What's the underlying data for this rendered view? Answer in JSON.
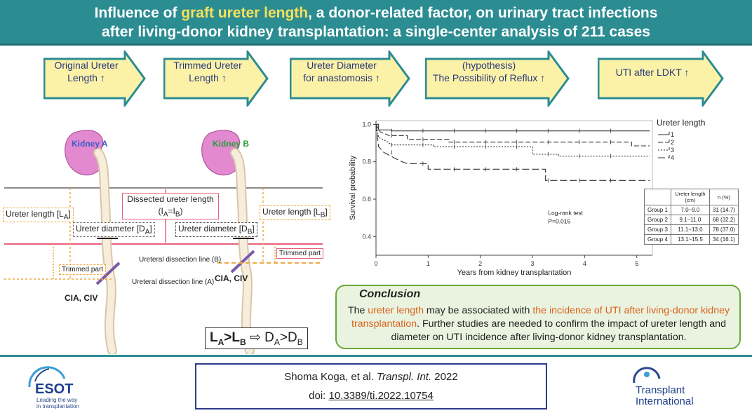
{
  "header": {
    "line1_pre": "Influence of ",
    "line1_highlight": "graft ureter length",
    "line1_post": ", a donor-related factor, on urinary tract infections",
    "line2": "after living-donor kidney transplantation: a single-center analysis of 211 cases",
    "highlight_color": "#f7e05a",
    "bg_color": "#2b8c92"
  },
  "flow": [
    {
      "line1": "Original Ureter",
      "line2": "Length ↑"
    },
    {
      "line1": "Trimmed Ureter",
      "line2": "Length ↑"
    },
    {
      "line1": "Ureter Diameter",
      "line2": "for anastomosis ↑"
    },
    {
      "line1": "(hypothesis)",
      "line2": "The Possibility of Reflux ↑"
    },
    {
      "line1": "UTI after LDKT ↑",
      "line2": ""
    }
  ],
  "diagram": {
    "kidney_a": "Kidney A",
    "kidney_b": "Kidney B",
    "dissected_line1": "Dissected ureter length",
    "dissected_line2_pre": "(I",
    "dissected_sub_a": "A",
    "dissected_mid": "=I",
    "dissected_sub_b": "B",
    "dissected_end": ")",
    "ureter_length": "Ureter length [L",
    "ureter_diameter": "Ureter diameter [D",
    "sub_a": "A",
    "sub_b": "B",
    "close_bracket": "]",
    "trimmed_part": "Trimmed part",
    "dissection_line_a": "Ureteral dissection line (A)",
    "dissection_line_b": "Ureteral dissection line (B)",
    "vessel": "CIA, CIV",
    "formula": {
      "L": "L",
      "A": "A",
      "gt": ">",
      "B": "B",
      "arrow": "⇨",
      "D": "D"
    }
  },
  "chart_data": {
    "type": "line",
    "title": "",
    "xlabel": "Years from kidney transplantation",
    "ylabel": "Survival probability",
    "xlim": [
      0,
      5.3
    ],
    "ylim": [
      0.3,
      1.02
    ],
    "xticks": [
      0,
      1,
      2,
      3,
      4,
      5
    ],
    "yticks": [
      0.4,
      0.6,
      0.8,
      1.0
    ],
    "legend_title": "Ureter length",
    "annotation_line1": "Log-rank test",
    "annotation_line2": "P=0.015",
    "series": [
      {
        "name": "1",
        "dash": "solid",
        "points": [
          [
            0,
            1.0
          ],
          [
            0.05,
            1.0
          ],
          [
            0.05,
            0.97
          ],
          [
            0.3,
            0.97
          ],
          [
            0.3,
            0.965
          ],
          [
            5.25,
            0.965
          ]
        ]
      },
      {
        "name": "2",
        "dash": "dashed-long",
        "points": [
          [
            0,
            1.0
          ],
          [
            0.08,
            0.96
          ],
          [
            0.25,
            0.94
          ],
          [
            0.6,
            0.94
          ],
          [
            0.6,
            0.92
          ],
          [
            1.4,
            0.92
          ],
          [
            1.4,
            0.905
          ],
          [
            4.9,
            0.905
          ],
          [
            4.9,
            0.885
          ],
          [
            5.25,
            0.885
          ]
        ]
      },
      {
        "name": "3",
        "dash": "dotted",
        "points": [
          [
            0,
            1.0
          ],
          [
            0.05,
            0.93
          ],
          [
            0.2,
            0.91
          ],
          [
            0.3,
            0.89
          ],
          [
            1.1,
            0.89
          ],
          [
            1.1,
            0.88
          ],
          [
            3.0,
            0.88
          ],
          [
            3.0,
            0.84
          ],
          [
            3.5,
            0.84
          ],
          [
            3.5,
            0.83
          ],
          [
            5.25,
            0.83
          ]
        ]
      },
      {
        "name": "4",
        "dash": "dashed",
        "points": [
          [
            0,
            1.0
          ],
          [
            0.05,
            0.88
          ],
          [
            0.15,
            0.85
          ],
          [
            0.35,
            0.82
          ],
          [
            0.5,
            0.8
          ],
          [
            0.6,
            0.79
          ],
          [
            1.0,
            0.79
          ],
          [
            1.0,
            0.76
          ],
          [
            3.25,
            0.76
          ],
          [
            3.25,
            0.7
          ],
          [
            5.25,
            0.7
          ]
        ]
      }
    ],
    "table": {
      "headers": [
        "",
        "Ureter length (cm)",
        "n (%)"
      ],
      "rows": [
        [
          "Group 1",
          "7.0~9.0",
          "31 (14.7)"
        ],
        [
          "Group 2",
          "9.1~11.0",
          "68 (32.2)"
        ],
        [
          "Group 3",
          "11.1~13.0",
          "78 (37.0)"
        ],
        [
          "Group 4",
          "13.1~15.5",
          "34 (16.1)"
        ]
      ]
    }
  },
  "conclusion": {
    "title": "Conclusion",
    "pre": "The ",
    "hl1": "ureter length",
    "mid": " may be associated with ",
    "hl2": "the incidence of UTI after living-donor kidney transplantation",
    "post": ". Further studies are needed to confirm the impact of ureter length and diameter on UTI incidence after living-donor kidney transplantation."
  },
  "citation": {
    "authors": "Shoma Koga, et al. ",
    "journal": "Transpl. Int.",
    "year": " 2022",
    "doi_label": "doi: ",
    "doi": "10.3389/ti.2022.10754"
  },
  "logos": {
    "esot_name": "ESOT",
    "esot_tagline1": "Leading the way",
    "esot_tagline2": "in transplantation",
    "ti_line1": "Transplant",
    "ti_line2": "International"
  }
}
